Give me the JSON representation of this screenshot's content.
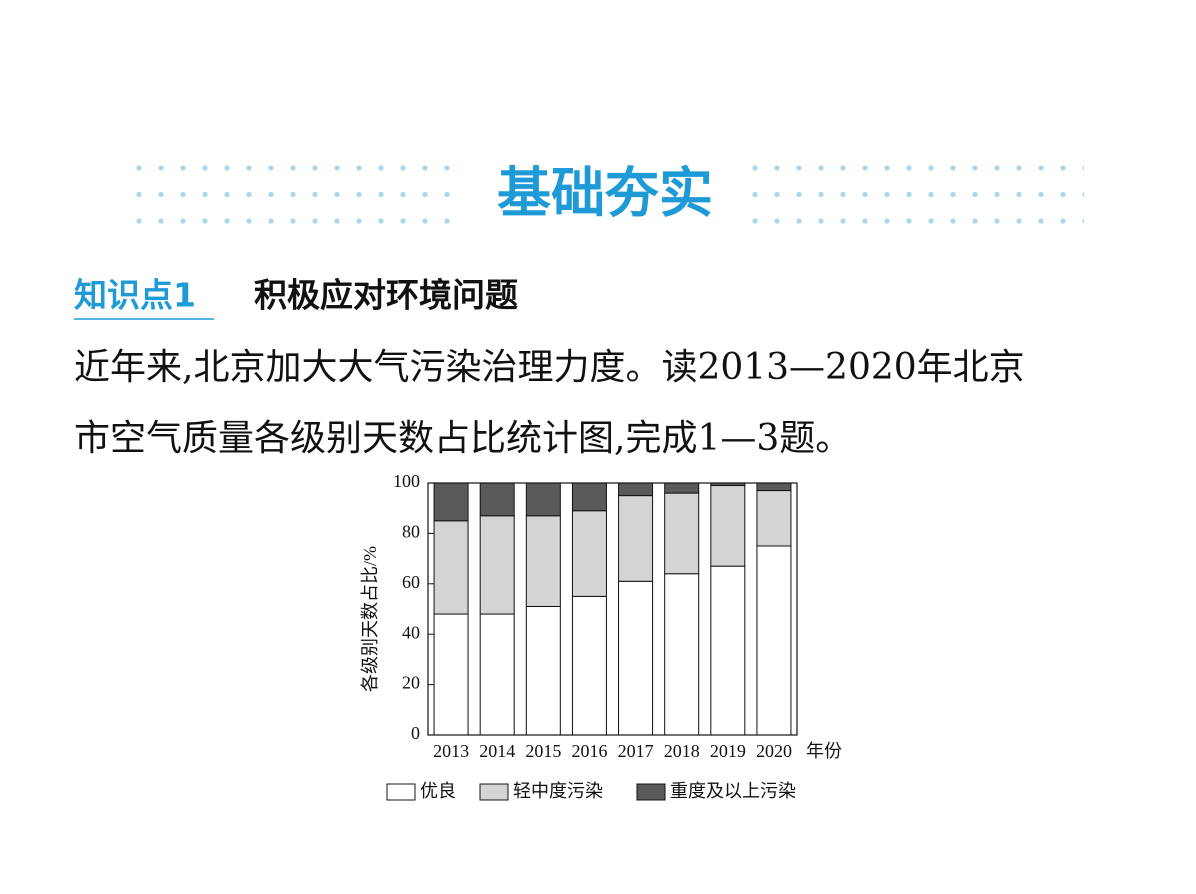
{
  "header": {
    "title": "基础夯实",
    "tag": "知识点1",
    "topic": "积极应对环境问题"
  },
  "paragraph": [
    "近年来,北京加大大气污染治理力度。读2013—2020年北京",
    "市空气质量各级别天数占比统计图,完成1—3题。"
  ],
  "chart_data": {
    "type": "bar",
    "stacked": true,
    "ylabel": "各级别天数占比/%",
    "xlabel": "年份",
    "categories": [
      "2013",
      "2014",
      "2015",
      "2016",
      "2017",
      "2018",
      "2019",
      "2020"
    ],
    "series": [
      {
        "name": "优良",
        "color": "#ffffff",
        "values": [
          48,
          48,
          51,
          55,
          61,
          64,
          67,
          75
        ]
      },
      {
        "name": "轻中度污染",
        "color": "#d4d4d4",
        "values": [
          37,
          39,
          36,
          34,
          34,
          32,
          32,
          22
        ]
      },
      {
        "name": "重度及以上污染",
        "color": "#5a5a5a",
        "values": [
          15,
          13,
          13,
          11,
          5,
          4,
          1,
          3
        ]
      }
    ],
    "ylim": [
      0,
      100
    ],
    "yticks": [
      0,
      20,
      40,
      60,
      80,
      100
    ]
  }
}
